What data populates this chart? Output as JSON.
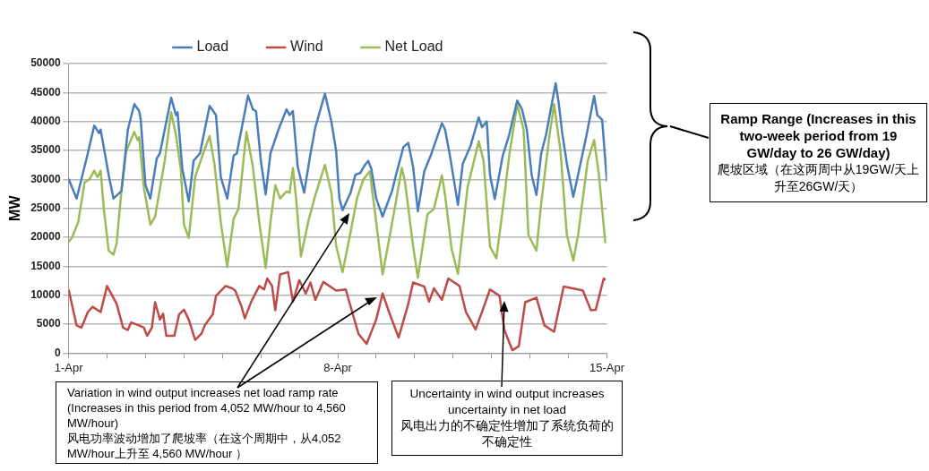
{
  "chart_data": {
    "type": "line",
    "ylabel": "MW",
    "ylim": [
      0,
      50000
    ],
    "yticks": [
      0,
      5000,
      10000,
      15000,
      20000,
      25000,
      30000,
      35000,
      40000,
      45000,
      50000
    ],
    "xlim": [
      "--04-01",
      "--04-15"
    ],
    "xticks": [
      {
        "value": "--04-01",
        "label": "1-Apr"
      },
      {
        "value": "--04-02",
        "label": null
      },
      {
        "value": "--04-03",
        "label": null
      },
      {
        "value": "--04-04",
        "label": null
      },
      {
        "value": "--04-05",
        "label": null
      },
      {
        "value": "--04-06",
        "label": null
      },
      {
        "value": "--04-07",
        "label": null
      },
      {
        "value": "--04-08",
        "label": "8-Apr"
      },
      {
        "value": "--04-09",
        "label": null
      },
      {
        "value": "--04-10",
        "label": null
      },
      {
        "value": "--04-11",
        "label": null
      },
      {
        "value": "--04-12",
        "label": null
      },
      {
        "value": "--04-13",
        "label": null
      },
      {
        "value": "--04-14",
        "label": null
      },
      {
        "value": "--04-15",
        "label": "15-Apr"
      }
    ],
    "grid": "y",
    "legend": "top",
    "line_style": "solid",
    "marker": "none",
    "series": [
      {
        "name": "Load",
        "color": "#4a7ebb",
        "x": [
          "--04-01T00:00",
          "--04-01T05:00",
          "--04-01T12:00",
          "--04-01T16:00",
          "--04-01T19:00",
          "--04-01T20:00",
          "--04-02T01:00",
          "--04-02T04:00",
          "--04-02T09:00",
          "--04-02T13:00",
          "--04-02T17:00",
          "--04-02T20:00",
          "--04-02T21:00",
          "--04-03T00:00",
          "--04-03T03:00",
          "--04-03T07:00",
          "--04-03T09:00",
          "--04-03T16:00",
          "--04-03T19:00",
          "--04-03T20:00",
          "--04-03T23:00",
          "--04-04T03:00",
          "--04-04T06:00",
          "--04-04T10:00",
          "--04-04T16:00",
          "--04-04T20:00",
          "--04-04T23:00",
          "--04-05T03:00",
          "--04-05T07:00",
          "--04-05T09:00",
          "--04-05T16:00",
          "--04-05T19:00",
          "--04-05T21:00",
          "--04-06T00:00",
          "--04-06T03:00",
          "--04-06T06:00",
          "--04-06T11:00",
          "--04-06T16:00",
          "--04-06T18:00",
          "--04-06T20:00",
          "--04-06T23:00",
          "--04-07T03:00",
          "--04-07T07:00",
          "--04-07T10:00",
          "--04-07T16:00",
          "--04-07T20:00",
          "--04-07T23:00",
          "--04-08T01:00",
          "--04-08T03:00",
          "--04-08T08:00",
          "--04-08T11:00",
          "--04-08T14:00",
          "--04-08T17:00",
          "--04-08T19:00",
          "--04-08T21:00",
          "--04-09T00:00",
          "--04-09T04:00",
          "--04-09T10:00",
          "--04-09T12:00",
          "--04-09T17:00",
          "--04-09T20:00",
          "--04-09T23:00",
          "--04-10T02:00",
          "--04-10T06:00",
          "--04-10T10:00",
          "--04-10T17:00",
          "--04-10T19:00",
          "--04-10T22:00",
          "--04-11T03:00",
          "--04-11T06:00",
          "--04-11T11:00",
          "--04-11T16:00",
          "--04-11T18:00",
          "--04-11T21:00",
          "--04-11T23:00",
          "--04-12T02:00",
          "--04-12T07:00",
          "--04-12T11:00",
          "--04-12T16:00",
          "--04-12T19:00",
          "--04-12T22:00",
          "--04-13T01:00",
          "--04-13T04:00",
          "--04-13T07:00",
          "--04-13T10:00",
          "--04-13T16:00",
          "--04-13T18:00",
          "--04-13T20:00",
          "--04-13T23:00",
          "--04-14T03:00",
          "--04-14T06:00",
          "--04-14T11:00",
          "--04-14T16:00",
          "--04-14T18:00",
          "--04-14T21:00",
          "--04-15T00:00"
        ],
        "values": [
          30100,
          26700,
          34500,
          39300,
          38000,
          38600,
          30800,
          26700,
          28000,
          38600,
          43000,
          41800,
          40400,
          29000,
          26700,
          33600,
          34500,
          44100,
          41100,
          41600,
          31800,
          26200,
          33200,
          34500,
          42700,
          41100,
          30400,
          26700,
          34100,
          34500,
          44500,
          42100,
          41800,
          33200,
          27400,
          34500,
          38600,
          42100,
          41100,
          41800,
          32200,
          27700,
          34500,
          39000,
          44800,
          40000,
          34900,
          26700,
          24700,
          27700,
          30800,
          31100,
          32500,
          33200,
          31800,
          26700,
          23600,
          28100,
          30400,
          35600,
          36300,
          32200,
          24500,
          31400,
          34100,
          39700,
          38600,
          34100,
          25600,
          32700,
          35900,
          40700,
          39000,
          40000,
          30800,
          26600,
          34100,
          37700,
          43600,
          42100,
          38600,
          30800,
          27300,
          34500,
          37700,
          46600,
          43000,
          38200,
          32700,
          27000,
          30800,
          37300,
          44400,
          41100,
          40300,
          29700
        ]
      },
      {
        "name": "Wind",
        "color": "#be4b48",
        "x": [
          "--04-01T00:00",
          "--04-01T05:00",
          "--04-01T08:00",
          "--04-01T12:00",
          "--04-01T15:00",
          "--04-01T20:00",
          "--04-02T00:00",
          "--04-02T06:00",
          "--04-02T10:00",
          "--04-02T13:00",
          "--04-02T15:00",
          "--04-02T20:00",
          "--04-02T23:00",
          "--04-03T01:00",
          "--04-03T04:00",
          "--04-03T06:00",
          "--04-03T09:00",
          "--04-03T11:00",
          "--04-03T13:00",
          "--04-03T18:00",
          "--04-03T21:00",
          "--04-04T00:00",
          "--04-04T03:00",
          "--04-04T07:00",
          "--04-04T11:00",
          "--04-04T13:00",
          "--04-04T18:00",
          "--04-04T20:00",
          "--04-05T02:00",
          "--04-05T06:00",
          "--04-05T08:00",
          "--04-05T12:00",
          "--04-05T14:00",
          "--04-05T18:00",
          "--04-05T23:00",
          "--04-06T02:00",
          "--04-06T04:00",
          "--04-06T07:00",
          "--04-06T09:00",
          "--04-06T12:00",
          "--04-06T17:00",
          "--04-06T20:00",
          "--04-07T00:00",
          "--04-07T04:00",
          "--04-07T07:00",
          "--04-07T10:00",
          "--04-07T15:00",
          "--04-07T23:00",
          "--04-08T05:00",
          "--04-08T09:00",
          "--04-08T13:00",
          "--04-08T18:00",
          "--04-09T00:00",
          "--04-09T04:00",
          "--04-09T08:00",
          "--04-09T14:00",
          "--04-09T20:00",
          "--04-09T23:00",
          "--04-10T06:00",
          "--04-10T09:00",
          "--04-10T12:00",
          "--04-10T17:00",
          "--04-10T21:00",
          "--04-11T04:00",
          "--04-11T08:00",
          "--04-11T14:00",
          "--04-11T18:00",
          "--04-11T23:00",
          "--04-12T05:00",
          "--04-12T08:00",
          "--04-12T13:00",
          "--04-12T17:00",
          "--04-12T21:00",
          "--04-13T04:00",
          "--04-13T09:00",
          "--04-13T15:00",
          "--04-13T21:00",
          "--04-14T06:00",
          "--04-14T09:00",
          "--04-14T14:00",
          "--04-14T17:00",
          "--04-14T22:00",
          "--04-14T23:00"
        ],
        "values": [
          11000,
          4800,
          4400,
          7100,
          8000,
          7100,
          11600,
          8500,
          4400,
          4000,
          5300,
          4800,
          4400,
          3000,
          4400,
          8800,
          5800,
          6800,
          3000,
          3000,
          6700,
          7500,
          5800,
          2300,
          3400,
          4800,
          6700,
          9900,
          11600,
          11200,
          10800,
          8000,
          6000,
          8900,
          11600,
          11000,
          12900,
          11600,
          7400,
          13600,
          14000,
          8900,
          12600,
          10300,
          12200,
          9200,
          12300,
          10800,
          11000,
          7100,
          3300,
          1600,
          5800,
          10300,
          7100,
          2700,
          8500,
          12200,
          11500,
          8900,
          11200,
          9200,
          12900,
          11600,
          7100,
          4100,
          7100,
          11000,
          9900,
          4000,
          500,
          1200,
          8800,
          9600,
          4800,
          3700,
          11500,
          11000,
          10800,
          7400,
          7500,
          12900,
          12600
        ]
      },
      {
        "name": "Net Load",
        "color": "#9bbb59",
        "x": [
          "--04-01T00:00",
          "--04-01T02:00",
          "--04-01T06:00",
          "--04-01T10:00",
          "--04-01T13:00",
          "--04-01T16:00",
          "--04-01T18:00",
          "--04-01T20:00",
          "--04-01T22:00",
          "--04-02T01:00",
          "--04-02T04:00",
          "--04-02T06:00",
          "--04-02T09:00",
          "--04-02T12:00",
          "--04-02T17:00",
          "--04-02T19:00",
          "--04-02T20:00",
          "--04-02T23:00",
          "--04-03T03:00",
          "--04-03T06:00",
          "--04-03T10:00",
          "--04-03T12:00",
          "--04-03T16:00",
          "--04-03T19:00",
          "--04-03T22:00",
          "--04-04T00:00",
          "--04-04T03:00",
          "--04-04T07:00",
          "--04-04T12:00",
          "--04-04T16:00",
          "--04-04T19:00",
          "--04-04T23:00",
          "--04-05T03:00",
          "--04-05T07:00",
          "--04-05T10:00",
          "--04-05T15:00",
          "--04-05T19:00",
          "--04-05T23:00",
          "--04-06T03:00",
          "--04-06T06:00",
          "--04-06T09:00",
          "--04-06T12:00",
          "--04-06T16:00",
          "--04-06T18:00",
          "--04-06T20:00",
          "--04-06T22:00",
          "--04-07T01:00",
          "--04-07T06:00",
          "--04-07T10:00",
          "--04-07T16:00",
          "--04-07T20:00",
          "--04-07T23:00",
          "--04-08T03:00",
          "--04-08T07:00",
          "--04-08T12:00",
          "--04-08T16:00",
          "--04-08T20:00",
          "--04-09T00:00",
          "--04-09T04:00",
          "--04-09T10:00",
          "--04-09T16:00",
          "--04-09T18:00",
          "--04-09T23:00",
          "--04-10T02:00",
          "--04-10T08:00",
          "--04-10T12:00",
          "--04-10T17:00",
          "--04-10T19:00",
          "--04-10T23:00",
          "--04-11T03:00",
          "--04-11T09:00",
          "--04-11T16:00",
          "--04-11T19:00",
          "--04-11T23:00",
          "--04-12T03:00",
          "--04-12T07:00",
          "--04-12T11:00",
          "--04-12T16:00",
          "--04-12T20:00",
          "--04-12T23:00",
          "--04-13T04:00",
          "--04-13T07:00",
          "--04-13T12:00",
          "--04-13T15:00",
          "--04-13T19:00",
          "--04-13T23:00",
          "--04-14T03:00",
          "--04-14T06:00",
          "--04-14T12:00",
          "--04-14T16:00",
          "--04-14T19:00",
          "--04-14T23:00"
        ],
        "values": [
          19200,
          19900,
          22600,
          29500,
          30000,
          31500,
          30400,
          31500,
          24900,
          17700,
          17000,
          19000,
          28100,
          34900,
          38200,
          36800,
          37300,
          28600,
          22200,
          23600,
          30000,
          33200,
          41600,
          37700,
          31800,
          22200,
          19900,
          30400,
          34500,
          37500,
          32700,
          22600,
          14900,
          23200,
          24900,
          38200,
          32200,
          22600,
          14700,
          22600,
          29000,
          26700,
          27900,
          27700,
          32000,
          26700,
          16700,
          23200,
          27300,
          32500,
          27700,
          18500,
          14000,
          19500,
          26700,
          30000,
          31400,
          22600,
          13600,
          22600,
          32000,
          29500,
          18500,
          13000,
          24000,
          24900,
          30700,
          27300,
          18100,
          13700,
          28600,
          36600,
          33200,
          18400,
          16400,
          24900,
          34100,
          43000,
          38600,
          20400,
          17700,
          25900,
          37300,
          43000,
          34900,
          20400,
          16000,
          20400,
          33200,
          36800,
          30800,
          19000
        ]
      }
    ],
    "annotations": [
      "Ramp Range (Increases in this two-week period from 19 GW/day to 26 GW/day)\n爬坡区域（在这两周中从19GW/天上升至26GW/天）",
      {
        "text": "Variation in wind output increases net load ramp rate (Increases in this period from 4,052 MW/hour to 4,560 MW/hour)\n风电功率波动增加了爬坡率（在这个周期中，从4,052 MW/hour上升至 4,560 MW/hour ）"
      },
      {
        "text": "Uncertainty in wind output increases uncertainty in net load\n风电出力的不确定性增加了系统负荷的不确定性"
      }
    ]
  }
}
